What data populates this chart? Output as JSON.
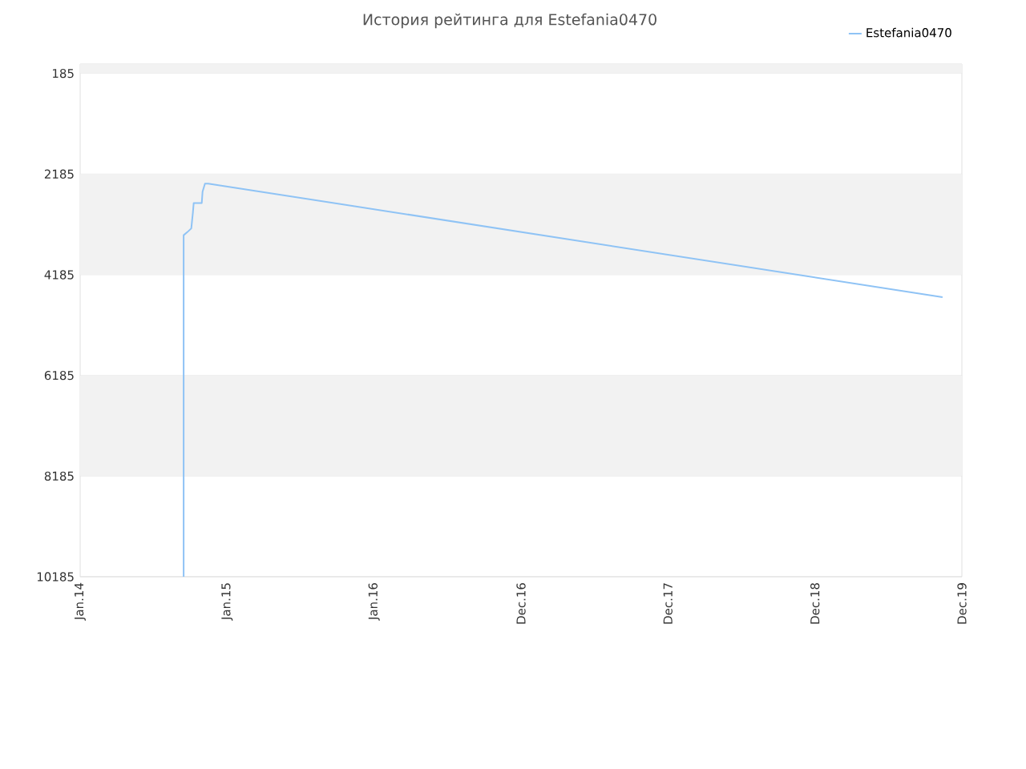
{
  "chart_data": {
    "type": "line",
    "title": "История рейтинга для Estefania0470",
    "x": [
      "2014-09-15",
      "2014-09-15",
      "2014-09-24",
      "2014-10-04",
      "2014-10-08",
      "2014-10-10",
      "2014-10-30",
      "2014-11-01",
      "2014-11-07",
      "2014-11-15",
      "2019-11-13"
    ],
    "series": [
      {
        "name": "Estefania0470",
        "color": "#8fc3f5",
        "values": [
          10185,
          3400,
          3340,
          3265,
          2950,
          2760,
          2760,
          2535,
          2375,
          2375,
          4630
        ]
      }
    ],
    "xlim": [
      "2014-01-01",
      "2019-12-31"
    ],
    "xticks": [
      {
        "value": "2014-01-01",
        "label": "Jan.14"
      },
      {
        "value": "2015-01-01",
        "label": "Jan.15"
      },
      {
        "value": "2016-01-01",
        "label": "Jan.16"
      },
      {
        "value": "2016-12-31",
        "label": "Dec.16"
      },
      {
        "value": "2017-12-31",
        "label": "Dec.17"
      },
      {
        "value": "2018-12-31",
        "label": "Dec.18"
      },
      {
        "value": "2019-12-31",
        "label": "Dec.19"
      }
    ],
    "ylim": [
      10185,
      0
    ],
    "yticks": [
      185,
      2185,
      4185,
      6185,
      8185,
      10185
    ],
    "bands": [
      {
        "axis": "y",
        "from": 0,
        "to": 185,
        "color": "#f2f2f2"
      },
      {
        "axis": "y",
        "from": 2185,
        "to": 4185,
        "color": "#f2f2f2"
      },
      {
        "axis": "y",
        "from": 6185,
        "to": 8185,
        "color": "#f2f2f2"
      }
    ],
    "grid": "y",
    "legend": "top right",
    "marker": "none",
    "line_style": "solid"
  }
}
